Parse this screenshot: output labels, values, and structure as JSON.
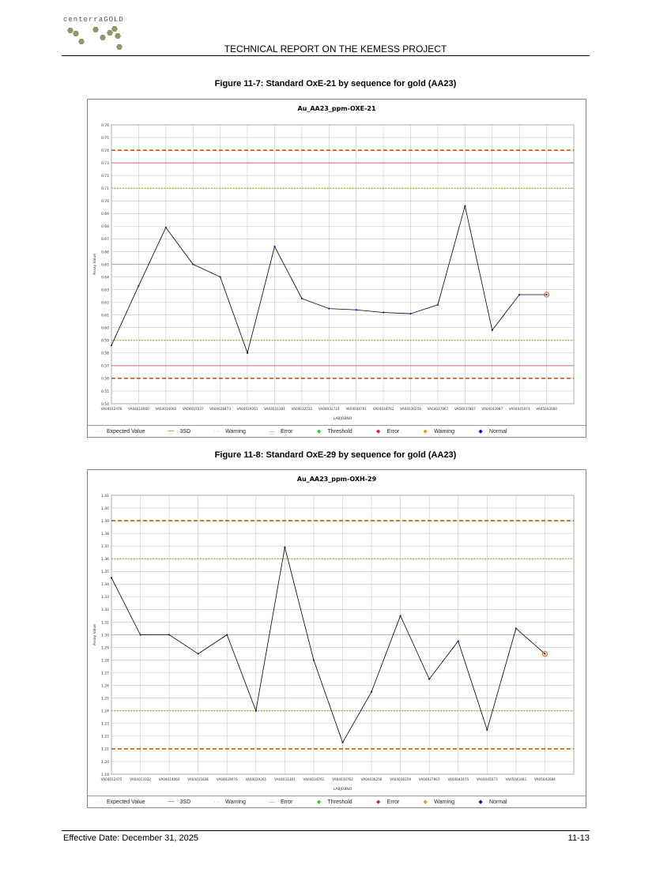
{
  "header": {
    "logo_text": "centerraGOLD",
    "title": "TECHNICAL REPORT ON THE KEMESS PROJECT"
  },
  "figures": [
    {
      "caption": "Figure 11-7: Standard OxE-21 by sequence for gold (AA23)"
    },
    {
      "caption": "Figure 11-8: Standard OxE-29 by sequence for gold (AA23)"
    }
  ],
  "legend": [
    {
      "label": "Expected Value",
      "style": "dotted",
      "color": "#7cc07c"
    },
    {
      "label": "3SD",
      "style": "dashed",
      "color": "#e06000"
    },
    {
      "label": "Warning",
      "style": "dotted",
      "color": "#c08000"
    },
    {
      "label": "Error",
      "style": "solid",
      "color": "#e05050"
    },
    {
      "label": "Threshold",
      "style": "dot",
      "color": "#33cc33"
    },
    {
      "label": "Error",
      "style": "dot",
      "color": "#e02020"
    },
    {
      "label": "Warning",
      "style": "dot",
      "color": "#e0a020"
    },
    {
      "label": "Normal",
      "style": "dot",
      "color": "#1010c0"
    }
  ],
  "footer": {
    "effective_date": "Effective Date: December 31, 2025",
    "page": "11-13"
  },
  "chart_data": [
    {
      "type": "line",
      "title": "Au_AA23_ppm-OXE-21",
      "xlabel": "LABJOBNO",
      "ylabel": "Assay Value",
      "ylim": [
        0.54,
        0.76
      ],
      "ytick_step": 0.01,
      "ytick_decimals": 2,
      "grid": true,
      "categories": [
        "VA04012476",
        "VA04014060",
        "VA04014060",
        "VA04015537",
        "VA04028473",
        "VA04029261",
        "VA04031381",
        "VA04032722",
        "VA04032724",
        "VA04034761",
        "VA04034762",
        "VA04036259",
        "VA04037867",
        "VA04037867",
        "VA04043987",
        "VA04045073",
        "VA05043084"
      ],
      "series": [
        {
          "values": [
            0.586,
            0.633,
            0.679,
            0.65,
            0.64,
            0.58,
            0.664,
            0.623,
            0.615,
            0.614,
            0.612,
            0.611,
            0.618,
            0.696,
            0.598,
            0.626,
            0.626
          ],
          "color": "#000000"
        }
      ],
      "last_point_flagged": true,
      "reference_lines": [
        {
          "value": 0.65,
          "kind": "expected",
          "color": "#90c890",
          "style": "solid"
        },
        {
          "value": 0.74,
          "kind": "3sd",
          "color": "#e06000",
          "style": "dashed"
        },
        {
          "value": 0.56,
          "kind": "3sd",
          "color": "#e06000",
          "style": "dashed"
        },
        {
          "value": 0.71,
          "kind": "warning",
          "color": "#c09000",
          "style": "dotted"
        },
        {
          "value": 0.59,
          "kind": "warning",
          "color": "#c09000",
          "style": "dotted"
        },
        {
          "value": 0.73,
          "kind": "error",
          "color": "#e06070",
          "style": "solid"
        },
        {
          "value": 0.57,
          "kind": "error",
          "color": "#e06070",
          "style": "solid"
        }
      ]
    },
    {
      "type": "line",
      "title": "Au_AA23_ppm-OXH-29",
      "xlabel": "LABJOBNO",
      "ylabel": "Assay Value",
      "ylim": [
        1.19,
        1.41
      ],
      "ytick_step": 0.01,
      "ytick_decimals": 2,
      "grid": true,
      "categories": [
        "VA04012475",
        "VA04013332",
        "VA04014060",
        "VA04015836",
        "VA04029076",
        "VA04029261",
        "VA04031381",
        "VA04034761",
        "VA04034762",
        "VA04036256",
        "VA04036259",
        "VA04037867",
        "VA04043475",
        "VA04045073",
        "VA05041661",
        "VA05043084"
      ],
      "series": [
        {
          "values": [
            1.345,
            1.3,
            1.3,
            1.285,
            1.3,
            1.24,
            1.369,
            1.28,
            1.215,
            1.255,
            1.315,
            1.265,
            1.295,
            1.225,
            1.305,
            1.285
          ],
          "color": "#000000"
        }
      ],
      "last_point_flagged": true,
      "reference_lines": [
        {
          "value": 1.3,
          "kind": "expected",
          "color": "#90c890",
          "style": "solid"
        },
        {
          "value": 1.39,
          "kind": "3sd",
          "color": "#e06000",
          "style": "dashed"
        },
        {
          "value": 1.21,
          "kind": "3sd",
          "color": "#e06000",
          "style": "dashed"
        },
        {
          "value": 1.36,
          "kind": "warning",
          "color": "#c09000",
          "style": "dotted"
        },
        {
          "value": 1.24,
          "kind": "warning",
          "color": "#c09000",
          "style": "dotted"
        }
      ]
    }
  ]
}
